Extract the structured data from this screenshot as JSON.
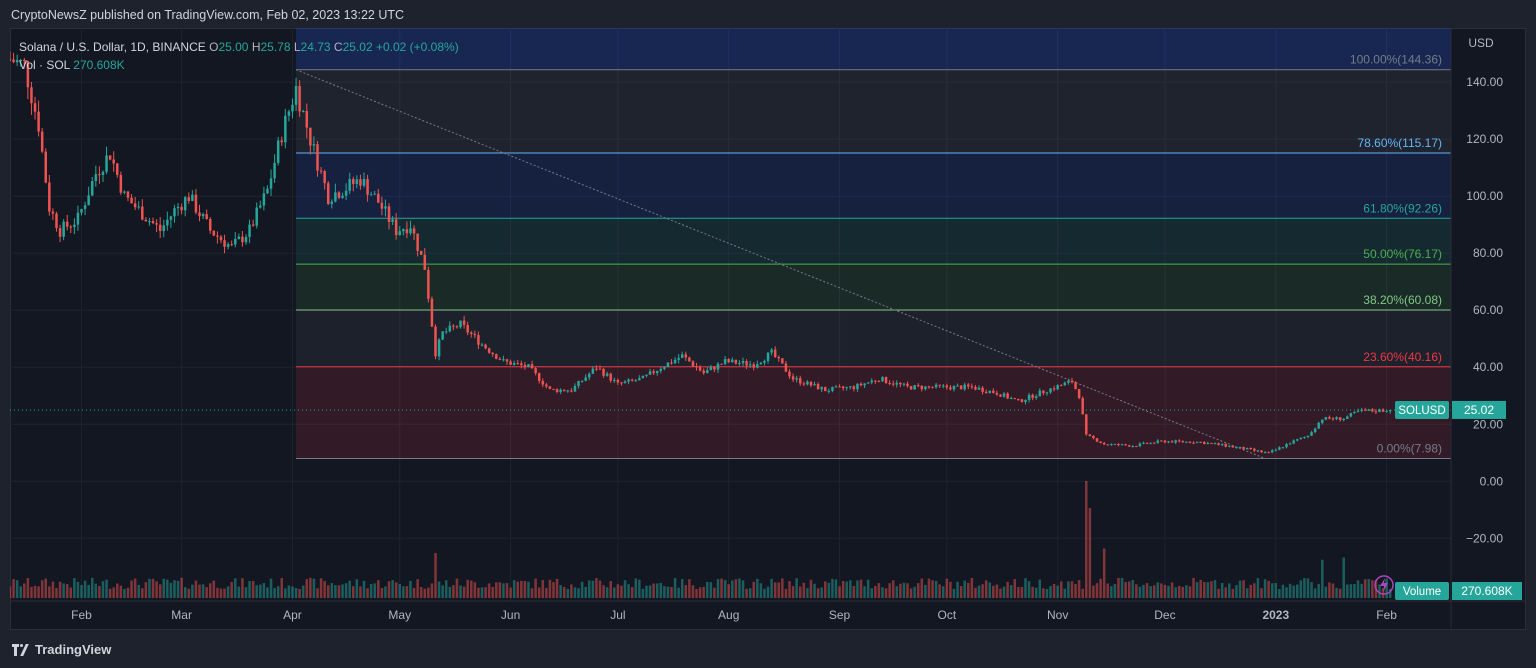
{
  "header": {
    "publish_text": "CryptoNewsZ published on TradingView.com, Feb 02, 2023 13:22 UTC"
  },
  "legend": {
    "symbol": "Solana / U.S. Dollar, 1D, BINANCE",
    "o_label": "O",
    "o_value": "25.00",
    "h_label": "H",
    "h_value": "25.78",
    "l_label": "L",
    "l_value": "24.73",
    "c_label": "C",
    "c_value": "25.02",
    "change": "+0.02 (+0.08%)",
    "vol_label": "Vol · SOL",
    "vol_value": "270.608K"
  },
  "footer": {
    "brand": "TradingView"
  },
  "colors": {
    "up": "#26a69a",
    "down": "#ef5350",
    "bg": "#131722",
    "text": "#b2b5be"
  },
  "chart_data": {
    "type": "candlestick",
    "symbol": "SOLUSD",
    "currency_label": "USD",
    "y_ticks": [
      -20,
      0,
      20,
      40,
      60,
      80,
      100,
      120,
      140
    ],
    "y_tick_labels": [
      "−20.00",
      "0.00",
      "20.00",
      "40.00",
      "60.00",
      "80.00",
      "100.00",
      "120.00",
      "140.00"
    ],
    "ylim": [
      -42,
      159
    ],
    "x_ticks": [
      "2022-02-01",
      "2022-03-01",
      "2022-04-01",
      "2022-05-01",
      "2022-06-01",
      "2022-07-01",
      "2022-08-01",
      "2022-09-01",
      "2022-10-01",
      "2022-11-01",
      "2022-12-01",
      "2023-01-01",
      "2023-02-01"
    ],
    "x_tick_labels": [
      "Feb",
      "Mar",
      "Apr",
      "May",
      "Jun",
      "Jul",
      "Aug",
      "Sep",
      "Oct",
      "Nov",
      "Dec",
      "2023",
      "Feb"
    ],
    "xlim": [
      "2022-01-12",
      "2023-02-19"
    ],
    "last_price": 25.02,
    "last_price_label": "25.02",
    "volume_label": "Volume",
    "volume_value": "270.608K",
    "fibonacci": {
      "start": "2022-04-02",
      "trend_from": {
        "date": "2022-04-02",
        "value": 144.36
      },
      "trend_to": {
        "date": "2022-12-29",
        "value": 7.98
      },
      "levels": [
        {
          "ratio": "100.00%",
          "value": 144.36,
          "label": "100.00%(144.36)",
          "color": "#787b86"
        },
        {
          "ratio": "78.60%",
          "value": 115.17,
          "label": "78.60%(115.17)",
          "color": "#64b5f6"
        },
        {
          "ratio": "61.80%",
          "value": 92.26,
          "label": "61.80%(92.26)",
          "color": "#26a69a"
        },
        {
          "ratio": "50.00%",
          "value": 76.17,
          "label": "50.00%(76.17)",
          "color": "#4caf50"
        },
        {
          "ratio": "38.20%",
          "value": 60.08,
          "label": "38.20%(60.08)",
          "color": "#81c784"
        },
        {
          "ratio": "23.60%",
          "value": 40.16,
          "label": "23.60%(40.16)",
          "color": "#f23645"
        },
        {
          "ratio": "0.00%",
          "value": 7.98,
          "label": "0.00%(7.98)",
          "color": "#787b86"
        }
      ]
    },
    "price_anchors": [
      [
        "2022-01-12",
        148
      ],
      [
        "2022-01-16",
        146
      ],
      [
        "2022-01-20",
        125
      ],
      [
        "2022-01-23",
        96
      ],
      [
        "2022-01-26",
        88
      ],
      [
        "2022-01-31",
        92
      ],
      [
        "2022-02-05",
        108
      ],
      [
        "2022-02-09",
        115
      ],
      [
        "2022-02-13",
        100
      ],
      [
        "2022-02-18",
        94
      ],
      [
        "2022-02-23",
        88
      ],
      [
        "2022-02-27",
        95
      ],
      [
        "2022-03-03",
        100
      ],
      [
        "2022-03-09",
        88
      ],
      [
        "2022-03-15",
        82
      ],
      [
        "2022-03-20",
        88
      ],
      [
        "2022-03-25",
        102
      ],
      [
        "2022-03-29",
        122
      ],
      [
        "2022-04-02",
        138
      ],
      [
        "2022-04-06",
        120
      ],
      [
        "2022-04-11",
        100
      ],
      [
        "2022-04-16",
        103
      ],
      [
        "2022-04-20",
        106
      ],
      [
        "2022-04-25",
        98
      ],
      [
        "2022-04-30",
        88
      ],
      [
        "2022-05-04",
        90
      ],
      [
        "2022-05-08",
        75
      ],
      [
        "2022-05-11",
        45
      ],
      [
        "2022-05-13",
        52
      ],
      [
        "2022-05-18",
        55
      ],
      [
        "2022-05-24",
        48
      ],
      [
        "2022-05-30",
        42
      ],
      [
        "2022-06-06",
        40
      ],
      [
        "2022-06-12",
        32
      ],
      [
        "2022-06-18",
        32
      ],
      [
        "2022-06-25",
        40
      ],
      [
        "2022-07-01",
        34
      ],
      [
        "2022-07-08",
        36
      ],
      [
        "2022-07-13",
        40
      ],
      [
        "2022-07-19",
        44
      ],
      [
        "2022-07-25",
        38
      ],
      [
        "2022-07-31",
        42
      ],
      [
        "2022-08-08",
        41
      ],
      [
        "2022-08-13",
        45
      ],
      [
        "2022-08-19",
        36
      ],
      [
        "2022-08-28",
        32
      ],
      [
        "2022-09-05",
        33
      ],
      [
        "2022-09-12",
        36
      ],
      [
        "2022-09-20",
        33
      ],
      [
        "2022-09-30",
        33
      ],
      [
        "2022-10-08",
        33
      ],
      [
        "2022-10-15",
        31
      ],
      [
        "2022-10-21",
        28
      ],
      [
        "2022-10-29",
        32
      ],
      [
        "2022-11-05",
        35
      ],
      [
        "2022-11-07",
        30
      ],
      [
        "2022-11-09",
        16
      ],
      [
        "2022-11-11",
        15
      ],
      [
        "2022-11-14",
        13
      ],
      [
        "2022-11-22",
        12.5
      ],
      [
        "2022-11-30",
        14
      ],
      [
        "2022-12-10",
        13.8
      ],
      [
        "2022-12-18",
        12.5
      ],
      [
        "2022-12-25",
        11
      ],
      [
        "2022-12-30",
        9.8
      ],
      [
        "2023-01-05",
        13.5
      ],
      [
        "2023-01-10",
        16
      ],
      [
        "2023-01-14",
        22
      ],
      [
        "2023-01-20",
        22
      ],
      [
        "2023-01-24",
        24.5
      ],
      [
        "2023-02-02",
        25.02
      ]
    ],
    "volume_peak_events": [
      [
        "2022-05-11",
        1.0
      ],
      [
        "2022-11-09",
        2.6
      ],
      [
        "2022-11-10",
        2.0
      ],
      [
        "2022-11-14",
        1.1
      ],
      [
        "2023-01-14",
        0.85
      ],
      [
        "2023-01-20",
        0.9
      ]
    ]
  }
}
